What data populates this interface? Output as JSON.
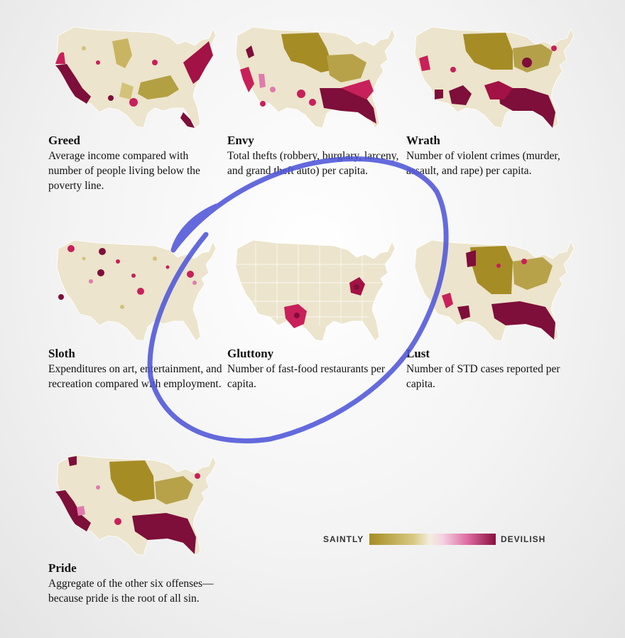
{
  "panels": [
    {
      "id": "greed",
      "title": "Greed",
      "desc": "Average income compared with number of people living below the poverty line."
    },
    {
      "id": "envy",
      "title": "Envy",
      "desc": "Total thefts (robbery, burglary, larceny, and grand theft auto) per capita."
    },
    {
      "id": "wrath",
      "title": "Wrath",
      "desc": "Number of violent crimes (murder, assault, and rape) per capita."
    },
    {
      "id": "sloth",
      "title": "Sloth",
      "desc": "Expenditures on art, entertainment, and recreation compared with employment."
    },
    {
      "id": "gluttony",
      "title": "Gluttony",
      "desc": "Number of fast-food restaurants per capita."
    },
    {
      "id": "lust",
      "title": "Lust",
      "desc": "Number of STD cases reported per capita."
    },
    {
      "id": "pride",
      "title": "Pride",
      "desc": "Aggregate of the other six offenses—because pride is the root of all sin."
    }
  ],
  "legend": {
    "left_label": "SAINTLY",
    "right_label": "DEVILISH",
    "colors": {
      "saintly": "#a68c25",
      "neutral": "#f2ede0",
      "devilish": "#8a0f3e"
    }
  },
  "colors": {
    "land": "#ece4cc",
    "olive": "#a68c25",
    "light_olive": "#d3c27a",
    "pink": "#e07aae",
    "magenta": "#c8205a",
    "maroon": "#7e0e3a",
    "annotation": "#4e55d8"
  },
  "annotation": {
    "shape": "hand-drawn-circle",
    "encircles": "gluttony"
  }
}
